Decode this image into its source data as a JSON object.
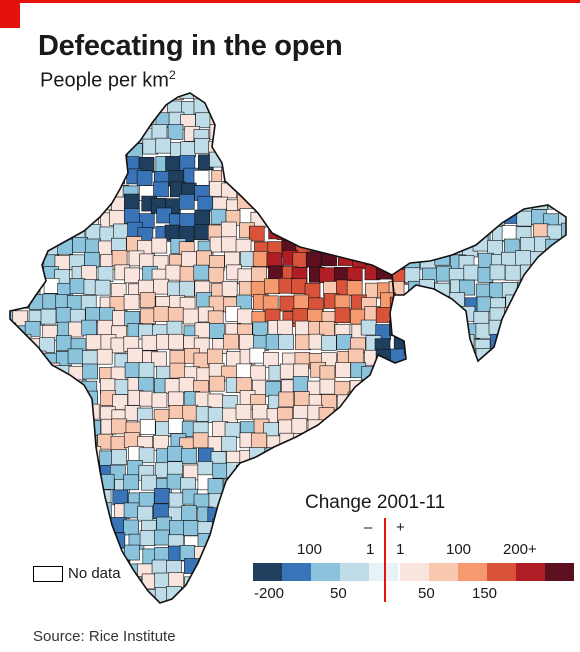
{
  "header": {
    "title": "Defecating in the open",
    "subtitle": "People per km",
    "subtitle_sup": "2"
  },
  "legend": {
    "title": "Change 2001-11",
    "minus_sign": "–",
    "plus_sign": "+",
    "upper_labels": [
      "100",
      "1",
      "1",
      "100",
      "200+"
    ],
    "lower_labels": [
      "-200",
      "50",
      "50",
      "150"
    ],
    "colors": [
      "#1f3f5e",
      "#3a74b8",
      "#8bc3dc",
      "#bfdde9",
      "#e9f2f6",
      "#f9e5de",
      "#f8c7b0",
      "#f59a6f",
      "#d8533a",
      "#b01e25",
      "#5b0f1f"
    ],
    "no_data_label": "No data"
  },
  "map": {
    "no_data_color": "#ffffff",
    "border_color": "#111111",
    "region_palette": [
      "#bfdde9",
      "#8bc3dc",
      "#3a74b8",
      "#1f3f5e",
      "#f9e5de",
      "#f8c7b0",
      "#f59a6f",
      "#d8533a",
      "#b01e25",
      "#5b0f1f"
    ]
  },
  "source": "Source: Rice Institute"
}
